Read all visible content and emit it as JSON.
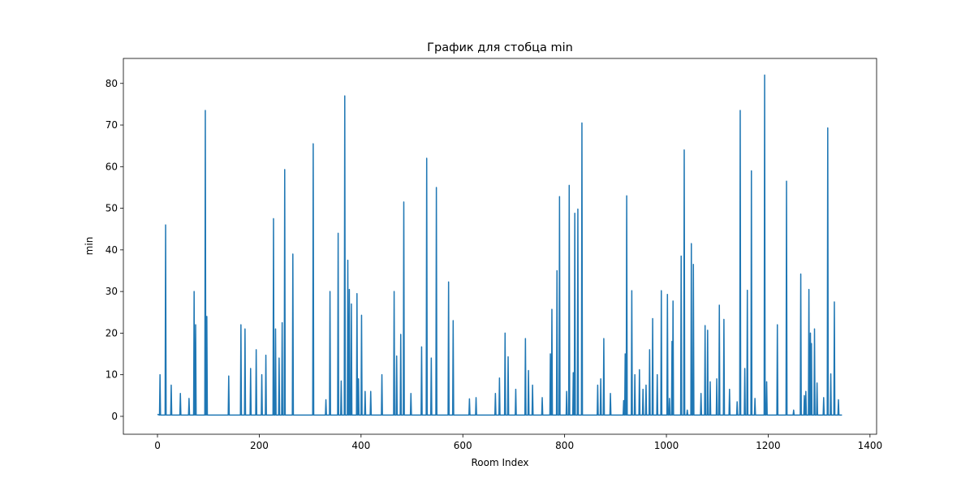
{
  "chart_data": {
    "type": "line",
    "title": "График для стобца min",
    "xlabel": "Room Index",
    "ylabel": "min",
    "xlim": [
      -67,
      1413
    ],
    "ylim": [
      -4.3,
      86
    ],
    "xticks": [
      0,
      200,
      400,
      600,
      800,
      1000,
      1200,
      1400
    ],
    "yticks": [
      0,
      10,
      20,
      30,
      40,
      50,
      60,
      70,
      80
    ],
    "series": [
      {
        "color": "#1f77b4",
        "x": [
          0,
          4,
          5,
          6,
          15,
          16,
          17,
          26,
          27,
          28,
          44,
          45,
          46,
          61,
          62,
          63,
          71,
          72,
          73,
          74,
          75,
          76,
          93,
          94,
          95,
          96,
          97,
          98,
          139,
          140,
          141,
          163,
          164,
          165,
          171,
          172,
          173,
          182,
          183,
          184,
          193,
          194,
          195,
          204,
          205,
          206,
          212,
          213,
          214,
          227,
          228,
          229,
          231,
          232,
          233,
          238,
          239,
          240,
          244,
          245,
          246,
          249,
          250,
          251,
          265,
          266,
          267,
          305,
          306,
          307,
          330,
          331,
          332,
          338,
          339,
          340,
          354,
          355,
          356,
          360,
          361,
          362,
          367,
          368,
          369,
          373,
          374,
          375,
          376,
          377,
          378,
          380,
          381,
          382,
          391,
          392,
          393,
          394,
          395,
          396,
          400,
          401,
          402,
          407,
          408,
          409,
          418,
          419,
          420,
          440,
          441,
          442,
          464,
          465,
          466,
          469,
          470,
          471,
          477,
          478,
          479,
          483,
          484,
          485,
          497,
          498,
          499,
          518,
          519,
          520,
          528,
          529,
          530,
          537,
          538,
          539,
          547,
          548,
          549,
          571,
          572,
          573,
          580,
          581,
          582,
          612,
          613,
          614,
          625,
          626,
          627,
          663,
          664,
          665,
          671,
          672,
          673,
          682,
          683,
          684,
          688,
          689,
          690,
          703,
          704,
          705,
          722,
          723,
          724,
          728,
          729,
          730,
          736,
          737,
          738,
          755,
          756,
          757,
          771,
          772,
          773,
          774,
          775,
          776,
          784,
          785,
          786,
          789,
          790,
          791,
          803,
          804,
          805,
          808,
          809,
          810,
          816,
          817,
          818,
          819,
          820,
          821,
          825,
          826,
          827,
          833,
          834,
          835,
          864,
          865,
          866,
          870,
          871,
          872,
          876,
          877,
          878,
          889,
          890,
          891,
          915,
          916,
          917,
          918,
          919,
          920,
          921,
          922,
          923,
          931,
          932,
          933,
          937,
          938,
          939,
          946,
          947,
          948,
          953,
          954,
          955,
          959,
          960,
          961,
          966,
          967,
          968,
          972,
          973,
          974,
          981,
          982,
          983,
          989,
          990,
          991,
          1001,
          1002,
          1003,
          1005,
          1006,
          1007,
          1010,
          1011,
          1012,
          1013,
          1014,
          1028,
          1029,
          1030,
          1034,
          1035,
          1036,
          1040,
          1041,
          1042,
          1048,
          1049,
          1050,
          1052,
          1053,
          1054,
          1067,
          1068,
          1069,
          1075,
          1076,
          1077,
          1080,
          1081,
          1082,
          1085,
          1086,
          1087,
          1098,
          1099,
          1100,
          1103,
          1104,
          1105,
          1112,
          1113,
          1114,
          1123,
          1124,
          1125,
          1138,
          1139,
          1140,
          1144,
          1145,
          1146,
          1153,
          1154,
          1155,
          1158,
          1159,
          1160,
          1166,
          1167,
          1168,
          1173,
          1174,
          1175,
          1192,
          1193,
          1194,
          1196,
          1197,
          1198,
          1217,
          1218,
          1219,
          1235,
          1236,
          1237,
          1249,
          1250,
          1251,
          1263,
          1264,
          1265,
          1270,
          1271,
          1272,
          1273,
          1274,
          1275,
          1279,
          1280,
          1281,
          1282,
          1283,
          1284,
          1285,
          1286,
          1290,
          1291,
          1292,
          1295,
          1296,
          1297,
          1308,
          1309,
          1310,
          1316,
          1317,
          1318,
          1322,
          1323,
          1324,
          1329,
          1330,
          1331,
          1337,
          1338,
          1339,
          1345
        ],
        "values": [
          0.5,
          0.3,
          10,
          0.3,
          0.3,
          46,
          0.3,
          0.3,
          7.5,
          0.3,
          0.3,
          5.5,
          0.3,
          0.3,
          4.3,
          0.3,
          0.3,
          30,
          0.3,
          0.3,
          22,
          0.3,
          0.3,
          73.5,
          0.3,
          0.3,
          24,
          0.3,
          0.3,
          9.7,
          0.3,
          0.3,
          22,
          0.3,
          0.3,
          21,
          0.3,
          0.3,
          11.5,
          0.3,
          0.3,
          16,
          0.3,
          0.3,
          10,
          0.3,
          0.3,
          14.7,
          0.3,
          0.3,
          47.5,
          0.3,
          0.3,
          21,
          0.3,
          0.3,
          14,
          0.3,
          0.3,
          22.5,
          0.3,
          0.3,
          59.3,
          0.3,
          0.3,
          39,
          0.3,
          0.3,
          65.5,
          0.3,
          0.3,
          4,
          0.3,
          0.3,
          30,
          0.3,
          0.3,
          44,
          0.3,
          0.3,
          8.5,
          0.3,
          0.3,
          77,
          0.3,
          0.3,
          37.5,
          0.3,
          0.3,
          30.5,
          0.3,
          0.3,
          27,
          0.3,
          0.3,
          29.5,
          0.3,
          0.3,
          9,
          0.3,
          0.3,
          24.3,
          0.3,
          0.3,
          6,
          0.3,
          0.3,
          6,
          0.3,
          0.3,
          10,
          0.3,
          0.3,
          30,
          0.3,
          0.3,
          14.5,
          0.3,
          0.3,
          19.7,
          0.3,
          0.3,
          51.5,
          0.3,
          0.3,
          5.5,
          0.3,
          0.3,
          16.7,
          0.3,
          0.3,
          62,
          0.3,
          0.3,
          14,
          0.3,
          0.3,
          55,
          0.3,
          0.3,
          32.3,
          0.3,
          0.3,
          23,
          0.3,
          0.3,
          4.2,
          0.3,
          0.3,
          4.5,
          0.3,
          0.3,
          5.5,
          0.3,
          0.3,
          9.2,
          0.3,
          0.3,
          20,
          0.3,
          0.3,
          14.3,
          0.3,
          0.3,
          6.5,
          0.3,
          0.3,
          18.7,
          0.3,
          0.3,
          11,
          0.3,
          0.3,
          7.5,
          0.3,
          0.3,
          4.5,
          0.3,
          0.3,
          15,
          0.3,
          0.3,
          25.7,
          0.3,
          0.3,
          35,
          0.3,
          0.3,
          52.8,
          0.3,
          0.3,
          6,
          0.3,
          0.3,
          55.5,
          0.3,
          0.3,
          10.5,
          0.3,
          0.3,
          48.8,
          0.3,
          0.3,
          49.8,
          0.3,
          0.3,
          70.5,
          0.3,
          0.3,
          7.5,
          0.3,
          0.3,
          9,
          0.3,
          0.3,
          18.7,
          0.3,
          0.3,
          5.5,
          0.3,
          0.3,
          3.8,
          0.3,
          0.3,
          15,
          0.3,
          0.3,
          53,
          0.3,
          0.3,
          30.2,
          0.3,
          0.3,
          10,
          0.3,
          0.3,
          11.2,
          0.3,
          0.3,
          6.5,
          0.3,
          0.3,
          7.5,
          0.3,
          0.3,
          16,
          0.3,
          0.3,
          23.5,
          0.3,
          0.3,
          10,
          0.3,
          0.3,
          30.2,
          0.3,
          0.3,
          29.3,
          0.3,
          0.3,
          4.3,
          0.3,
          0.3,
          18,
          0.3,
          27.7,
          0.3,
          0.3,
          38.5,
          0.3,
          0.3,
          64,
          0.3,
          0.3,
          1.5,
          0.3,
          0.3,
          41.5,
          0.3,
          0.3,
          36.5,
          0.3,
          0.3,
          5.5,
          0.3,
          0.3,
          21.8,
          0.3,
          0.3,
          20.7,
          0.3,
          0.3,
          8.3,
          0.3,
          0.3,
          9,
          0.3,
          0.3,
          26.7,
          0.3,
          0.3,
          23.3,
          0.3,
          0.3,
          6.5,
          0.3,
          0.3,
          3.5,
          0.3,
          0.3,
          73.5,
          0.3,
          0.3,
          11.5,
          0.3,
          0.3,
          30.3,
          0.3,
          0.3,
          59,
          0.3,
          0.3,
          4.3,
          0.3,
          0.3,
          82,
          0.3,
          0.3,
          8.3,
          0.3,
          0.3,
          22,
          0.3,
          0.3,
          56.5,
          0.3,
          0.3,
          1.5,
          0.3,
          0.3,
          34.2,
          0.3,
          0.3,
          5,
          0.3,
          0.3,
          6,
          0.3,
          0.3,
          30.5,
          0.3,
          0.3,
          20,
          0.3,
          17.5,
          0.3,
          0.3,
          21,
          0.3,
          0.3,
          8,
          0.3,
          0.3,
          4.5,
          0.3,
          0.3,
          69.3,
          0.3,
          0.3,
          10.2,
          0.3,
          0.3,
          27.5,
          0.3,
          0.3,
          4,
          0.3,
          0.3
        ]
      }
    ]
  }
}
